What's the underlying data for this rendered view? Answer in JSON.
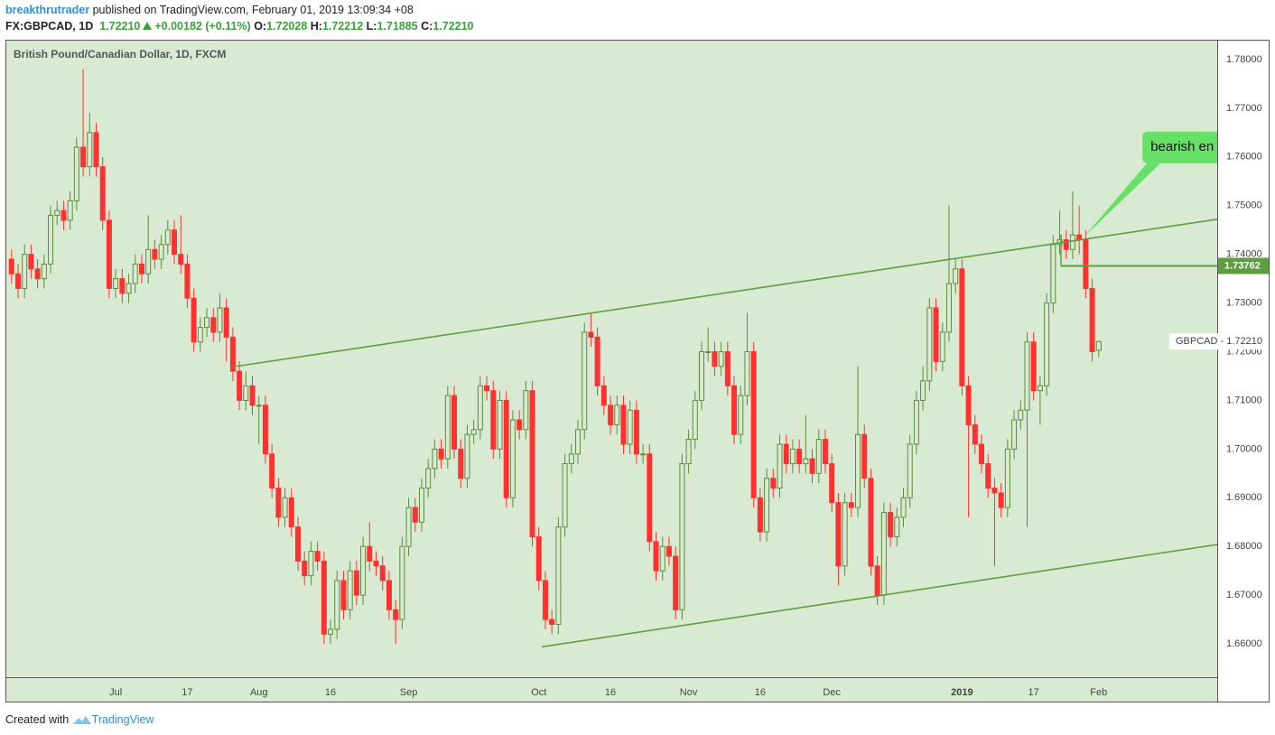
{
  "header": {
    "author": "breakthrutrader",
    "published": "published on TradingView.com, February 01, 2019 13:09:34 +08",
    "symbol": "FX:GBPCAD, 1D",
    "last": "1.72210",
    "change": "+0.00182 (+0.11%)",
    "ohlc": [
      {
        "label": "O:",
        "value": "1.72028"
      },
      {
        "label": "H:",
        "value": "1.72212"
      },
      {
        "label": "L:",
        "value": "1.71885"
      },
      {
        "label": "C:",
        "value": "1.72210"
      }
    ]
  },
  "footer": {
    "created": "Created with",
    "brand": "TradingView"
  },
  "chart_data": {
    "type": "candlestick",
    "title": "British Pound/Canadian Dollar, 1D, FXCM",
    "up_color": "#5b8c3a",
    "down_color": "#ff3030",
    "background": "#d9ead3",
    "grid": true,
    "xlim": [
      -0.8,
      185.2
    ],
    "ylim": [
      1.65315,
      1.78389
    ],
    "yticks": [
      {
        "value": 1.66,
        "label": "1.66000"
      },
      {
        "value": 1.67,
        "label": "1.67000"
      },
      {
        "value": 1.68,
        "label": "1.68000"
      },
      {
        "value": 1.69,
        "label": "1.69000"
      },
      {
        "value": 1.7,
        "label": "1.70000"
      },
      {
        "value": 1.71,
        "label": "1.71000"
      },
      {
        "value": 1.72,
        "label": "1.72000"
      },
      {
        "value": 1.73,
        "label": "1.73000"
      },
      {
        "value": 1.74,
        "label": "1.74000"
      },
      {
        "value": 1.75,
        "label": "1.75000"
      },
      {
        "value": 1.76,
        "label": "1.76000"
      },
      {
        "value": 1.77,
        "label": "1.77000"
      },
      {
        "value": 1.78,
        "label": "1.78000"
      }
    ],
    "xticks": [
      {
        "value": 16,
        "label": "Jul"
      },
      {
        "value": 27,
        "label": "17"
      },
      {
        "value": 38,
        "label": "Aug"
      },
      {
        "value": 49,
        "label": "16"
      },
      {
        "value": 61,
        "label": "Sep"
      },
      {
        "value": 81,
        "label": "Oct"
      },
      {
        "value": 92,
        "label": "16"
      },
      {
        "value": 104,
        "label": "Nov"
      },
      {
        "value": 115,
        "label": "16"
      },
      {
        "value": 126,
        "label": "Dec"
      },
      {
        "value": 146,
        "label": "2019"
      },
      {
        "value": 157,
        "label": "17"
      },
      {
        "value": 167,
        "label": "Feb"
      }
    ],
    "ohlc": [
      [
        1.739,
        1.741,
        1.734,
        1.736
      ],
      [
        1.736,
        1.738,
        1.731,
        1.733
      ],
      [
        1.733,
        1.742,
        1.731,
        1.74
      ],
      [
        1.74,
        1.742,
        1.735,
        1.737
      ],
      [
        1.737,
        1.739,
        1.733,
        1.735
      ],
      [
        1.735,
        1.74,
        1.733,
        1.738
      ],
      [
        1.738,
        1.75,
        1.736,
        1.748
      ],
      [
        1.748,
        1.751,
        1.746,
        1.749
      ],
      [
        1.749,
        1.751,
        1.745,
        1.747
      ],
      [
        1.747,
        1.753,
        1.745,
        1.751
      ],
      [
        1.751,
        1.764,
        1.749,
        1.762
      ],
      [
        1.762,
        1.778,
        1.756,
        1.758
      ],
      [
        1.758,
        1.769,
        1.756,
        1.765
      ],
      [
        1.765,
        1.767,
        1.756,
        1.758
      ],
      [
        1.758,
        1.76,
        1.745,
        1.747
      ],
      [
        1.747,
        1.749,
        1.731,
        1.733
      ],
      [
        1.733,
        1.737,
        1.731,
        1.735
      ],
      [
        1.735,
        1.737,
        1.73,
        1.732
      ],
      [
        1.732,
        1.736,
        1.73,
        1.734
      ],
      [
        1.734,
        1.74,
        1.732,
        1.738
      ],
      [
        1.738,
        1.74,
        1.734,
        1.736
      ],
      [
        1.736,
        1.748,
        1.734,
        1.741
      ],
      [
        1.741,
        1.743,
        1.737,
        1.739
      ],
      [
        1.739,
        1.744,
        1.737,
        1.742
      ],
      [
        1.742,
        1.747,
        1.74,
        1.745
      ],
      [
        1.745,
        1.747,
        1.738,
        1.74
      ],
      [
        1.74,
        1.748,
        1.736,
        1.738
      ],
      [
        1.738,
        1.74,
        1.729,
        1.731
      ],
      [
        1.731,
        1.733,
        1.72,
        1.722
      ],
      [
        1.722,
        1.727,
        1.72,
        1.725
      ],
      [
        1.725,
        1.729,
        1.723,
        1.727
      ],
      [
        1.727,
        1.729,
        1.722,
        1.724
      ],
      [
        1.724,
        1.732,
        1.722,
        1.729
      ],
      [
        1.729,
        1.731,
        1.718,
        1.723
      ],
      [
        1.723,
        1.725,
        1.714,
        1.716
      ],
      [
        1.716,
        1.718,
        1.708,
        1.71
      ],
      [
        1.71,
        1.716,
        1.708,
        1.713
      ],
      [
        1.713,
        1.715,
        1.707,
        1.709
      ],
      [
        1.709,
        1.711,
        1.701,
        1.709
      ],
      [
        1.709,
        1.711,
        1.697,
        1.699
      ],
      [
        1.699,
        1.701,
        1.69,
        1.692
      ],
      [
        1.692,
        1.694,
        1.684,
        1.686
      ],
      [
        1.686,
        1.692,
        1.684,
        1.69
      ],
      [
        1.69,
        1.692,
        1.682,
        1.684
      ],
      [
        1.684,
        1.686,
        1.675,
        1.677
      ],
      [
        1.677,
        1.679,
        1.672,
        1.674
      ],
      [
        1.674,
        1.681,
        1.672,
        1.679
      ],
      [
        1.679,
        1.681,
        1.675,
        1.677
      ],
      [
        1.677,
        1.679,
        1.66,
        1.662
      ],
      [
        1.662,
        1.665,
        1.66,
        1.663
      ],
      [
        1.663,
        1.675,
        1.661,
        1.673
      ],
      [
        1.673,
        1.675,
        1.665,
        1.667
      ],
      [
        1.667,
        1.677,
        1.665,
        1.675
      ],
      [
        1.675,
        1.677,
        1.668,
        1.67
      ],
      [
        1.67,
        1.682,
        1.668,
        1.68
      ],
      [
        1.68,
        1.685,
        1.675,
        1.677
      ],
      [
        1.677,
        1.679,
        1.674,
        1.676
      ],
      [
        1.676,
        1.678,
        1.671,
        1.673
      ],
      [
        1.673,
        1.675,
        1.665,
        1.667
      ],
      [
        1.667,
        1.669,
        1.66,
        1.665
      ],
      [
        1.665,
        1.682,
        1.663,
        1.68
      ],
      [
        1.68,
        1.69,
        1.678,
        1.688
      ],
      [
        1.688,
        1.69,
        1.683,
        1.685
      ],
      [
        1.685,
        1.694,
        1.683,
        1.692
      ],
      [
        1.692,
        1.698,
        1.69,
        1.696
      ],
      [
        1.696,
        1.702,
        1.694,
        1.7
      ],
      [
        1.7,
        1.702,
        1.696,
        1.698
      ],
      [
        1.698,
        1.713,
        1.696,
        1.711
      ],
      [
        1.711,
        1.713,
        1.698,
        1.7
      ],
      [
        1.7,
        1.702,
        1.692,
        1.694
      ],
      [
        1.694,
        1.705,
        1.692,
        1.703
      ],
      [
        1.703,
        1.706,
        1.701,
        1.704
      ],
      [
        1.704,
        1.715,
        1.702,
        1.713
      ],
      [
        1.713,
        1.715,
        1.71,
        1.712
      ],
      [
        1.712,
        1.714,
        1.698,
        1.7
      ],
      [
        1.7,
        1.712,
        1.698,
        1.71
      ],
      [
        1.71,
        1.712,
        1.688,
        1.69
      ],
      [
        1.69,
        1.708,
        1.688,
        1.706
      ],
      [
        1.706,
        1.708,
        1.702,
        1.704
      ],
      [
        1.704,
        1.714,
        1.702,
        1.712
      ],
      [
        1.712,
        1.714,
        1.68,
        1.682
      ],
      [
        1.682,
        1.684,
        1.671,
        1.673
      ],
      [
        1.673,
        1.675,
        1.663,
        1.665
      ],
      [
        1.665,
        1.667,
        1.662,
        1.664
      ],
      [
        1.664,
        1.686,
        1.662,
        1.684
      ],
      [
        1.684,
        1.699,
        1.682,
        1.697
      ],
      [
        1.697,
        1.701,
        1.695,
        1.699
      ],
      [
        1.699,
        1.706,
        1.697,
        1.704
      ],
      [
        1.704,
        1.726,
        1.702,
        1.724
      ],
      [
        1.724,
        1.728,
        1.721,
        1.723
      ],
      [
        1.723,
        1.725,
        1.711,
        1.713
      ],
      [
        1.713,
        1.715,
        1.707,
        1.709
      ],
      [
        1.709,
        1.711,
        1.703,
        1.705
      ],
      [
        1.705,
        1.711,
        1.703,
        1.709
      ],
      [
        1.709,
        1.711,
        1.699,
        1.701
      ],
      [
        1.701,
        1.71,
        1.699,
        1.708
      ],
      [
        1.708,
        1.71,
        1.697,
        1.699
      ],
      [
        1.699,
        1.701,
        1.697,
        1.699
      ],
      [
        1.699,
        1.701,
        1.679,
        1.681
      ],
      [
        1.681,
        1.683,
        1.673,
        1.675
      ],
      [
        1.675,
        1.682,
        1.673,
        1.68
      ],
      [
        1.68,
        1.682,
        1.676,
        1.678
      ],
      [
        1.678,
        1.68,
        1.665,
        1.667
      ],
      [
        1.667,
        1.699,
        1.665,
        1.697
      ],
      [
        1.697,
        1.704,
        1.695,
        1.702
      ],
      [
        1.702,
        1.712,
        1.7,
        1.71
      ],
      [
        1.71,
        1.722,
        1.708,
        1.72
      ],
      [
        1.72,
        1.725,
        1.718,
        1.72
      ],
      [
        1.72,
        1.722,
        1.715,
        1.717
      ],
      [
        1.717,
        1.722,
        1.715,
        1.72
      ],
      [
        1.72,
        1.722,
        1.711,
        1.713
      ],
      [
        1.713,
        1.715,
        1.701,
        1.703
      ],
      [
        1.703,
        1.713,
        1.701,
        1.711
      ],
      [
        1.711,
        1.728,
        1.709,
        1.72
      ],
      [
        1.72,
        1.722,
        1.688,
        1.69
      ],
      [
        1.69,
        1.692,
        1.681,
        1.683
      ],
      [
        1.683,
        1.696,
        1.681,
        1.694
      ],
      [
        1.694,
        1.696,
        1.69,
        1.692
      ],
      [
        1.692,
        1.703,
        1.69,
        1.701
      ],
      [
        1.701,
        1.703,
        1.695,
        1.697
      ],
      [
        1.697,
        1.702,
        1.695,
        1.7
      ],
      [
        1.7,
        1.702,
        1.695,
        1.697
      ],
      [
        1.697,
        1.707,
        1.695,
        1.698
      ],
      [
        1.698,
        1.7,
        1.693,
        1.695
      ],
      [
        1.695,
        1.704,
        1.693,
        1.702
      ],
      [
        1.702,
        1.704,
        1.695,
        1.697
      ],
      [
        1.697,
        1.699,
        1.687,
        1.689
      ],
      [
        1.689,
        1.691,
        1.672,
        1.676
      ],
      [
        1.676,
        1.691,
        1.674,
        1.689
      ],
      [
        1.689,
        1.691,
        1.686,
        1.688
      ],
      [
        1.688,
        1.717,
        1.686,
        1.703
      ],
      [
        1.703,
        1.705,
        1.692,
        1.694
      ],
      [
        1.694,
        1.696,
        1.674,
        1.676
      ],
      [
        1.676,
        1.678,
        1.668,
        1.67
      ],
      [
        1.67,
        1.689,
        1.668,
        1.687
      ],
      [
        1.687,
        1.689,
        1.68,
        1.682
      ],
      [
        1.682,
        1.688,
        1.68,
        1.686
      ],
      [
        1.686,
        1.692,
        1.684,
        1.69
      ],
      [
        1.69,
        1.703,
        1.688,
        1.701
      ],
      [
        1.701,
        1.712,
        1.699,
        1.71
      ],
      [
        1.71,
        1.717,
        1.708,
        1.714
      ],
      [
        1.714,
        1.731,
        1.712,
        1.729
      ],
      [
        1.729,
        1.731,
        1.716,
        1.718
      ],
      [
        1.718,
        1.726,
        1.716,
        1.724
      ],
      [
        1.724,
        1.75,
        1.722,
        1.734
      ],
      [
        1.734,
        1.739,
        1.732,
        1.737
      ],
      [
        1.737,
        1.739,
        1.711,
        1.713
      ],
      [
        1.713,
        1.715,
        1.686,
        1.705
      ],
      [
        1.705,
        1.707,
        1.699,
        1.701
      ],
      [
        1.701,
        1.703,
        1.695,
        1.697
      ],
      [
        1.697,
        1.699,
        1.69,
        1.692
      ],
      [
        1.692,
        1.694,
        1.676,
        1.691
      ],
      [
        1.691,
        1.693,
        1.686,
        1.688
      ],
      [
        1.688,
        1.702,
        1.686,
        1.7
      ],
      [
        1.7,
        1.708,
        1.698,
        1.706
      ],
      [
        1.706,
        1.71,
        1.704,
        1.708
      ],
      [
        1.708,
        1.724,
        1.684,
        1.722
      ],
      [
        1.722,
        1.724,
        1.71,
        1.712
      ],
      [
        1.712,
        1.715,
        1.705,
        1.713
      ],
      [
        1.713,
        1.732,
        1.711,
        1.73
      ],
      [
        1.73,
        1.744,
        1.728,
        1.742
      ],
      [
        1.742,
        1.749,
        1.74,
        1.743
      ],
      [
        1.743,
        1.745,
        1.739,
        1.741
      ],
      [
        1.741,
        1.753,
        1.739,
        1.744
      ],
      [
        1.744,
        1.75,
        1.74,
        1.743
      ],
      [
        1.743,
        1.745,
        1.731,
        1.733
      ],
      [
        1.733,
        1.735,
        1.718,
        1.72
      ],
      [
        1.72028,
        1.72212,
        1.71885,
        1.7221
      ]
    ],
    "trend_lines": [
      {
        "x": [
          34.0,
          185.2
        ],
        "y": [
          1.7169,
          1.7472
        ]
      },
      {
        "x": [
          81.5,
          185.2
        ],
        "y": [
          1.6594,
          1.6804
        ]
      }
    ],
    "level": {
      "x": [
        161.2,
        185.2
      ],
      "y": 1.73762,
      "label": "1.73762"
    },
    "last_price_label": "GBPCAD - 1.72210",
    "annotation": {
      "text": "bearish en",
      "x": 164.7,
      "y": 1.7435
    }
  }
}
